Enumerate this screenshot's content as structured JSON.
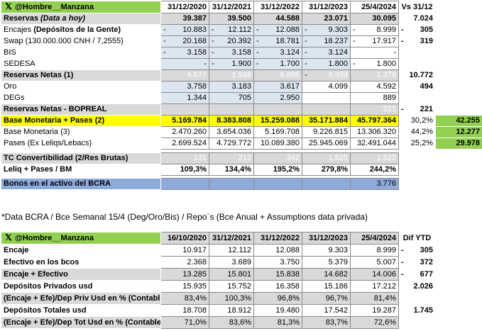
{
  "table1": {
    "brand": "@Hombre__Manzana",
    "headers": [
      "31/12/2020",
      "31/12/2021",
      "31/12/2022",
      "31/12/2023",
      "25/4/2024",
      "Vs 31/12"
    ],
    "rows": [
      {
        "label": "Reservas (Data a hoy)",
        "values": [
          "39.387",
          "39.500",
          "44.588",
          "23.071",
          "30.095"
        ],
        "vs": "7.024"
      },
      {
        "label": "Encajes (Depósitos de la Gente)",
        "values": [
          "10.883",
          "12.112",
          "12.088",
          "9.303",
          "8.999"
        ],
        "vs": "305"
      },
      {
        "label": "Swap (130.000.000 CNH / 7,2555)",
        "values": [
          "20.168",
          "20.392",
          "18.781",
          "18.237",
          "17.917"
        ],
        "vs": "319"
      },
      {
        "label": "BIS",
        "values": [
          "3.158",
          "3.158",
          "3.124",
          "3.124",
          "-"
        ],
        "vs": ""
      },
      {
        "label": "SEDESA",
        "values": [
          "-",
          "1.900",
          "1.700",
          "1.800",
          "1.800"
        ],
        "vs": ""
      },
      {
        "label": "Reservas Netas (1)",
        "values": [
          "4.677",
          "1.938",
          "8.895",
          "9.393",
          "1.379"
        ],
        "vs": "10.772"
      },
      {
        "label": "Oro",
        "values": [
          "3.758",
          "3.183",
          "3.617",
          "4.099",
          "4.592"
        ],
        "vs": "494"
      },
      {
        "label": "DEGs",
        "values": [
          "1.344",
          "705",
          "2.950",
          "",
          "889"
        ],
        "vs": ""
      },
      {
        "label": "Reservas Netas - BOPREAL",
        "values": [
          "",
          "",
          "",
          "",
          "221"
        ],
        "vs": "221"
      },
      {
        "label": "Base Monetaria + Pases (2)",
        "values": [
          "5.169.784",
          "8.383.808",
          "15.259.088",
          "35.171.884",
          "45.797.364"
        ],
        "pct": "30,2%",
        "big": "42.255"
      },
      {
        "label": "Base Monetaria (3)",
        "values": [
          "2.470.260",
          "3.654.036",
          "5.169.708",
          "9.226.815",
          "13.306.320"
        ],
        "pct": "44,2%",
        "big": "12.277"
      },
      {
        "label": "Pases (Ex Leliqs/Lebacs)",
        "values": [
          "2.699.524",
          "4.729.772",
          "10.089.380",
          "25.945.069",
          "32.491.044"
        ],
        "pct": "25,2%",
        "big": "29.978"
      },
      {
        "label": "TC Convertibilidad (2/Res Brutas)",
        "values": [
          "131",
          "212",
          "342",
          "1.525",
          "1.522"
        ]
      },
      {
        "label": "Leliq + Pases / BM",
        "values": [
          "109,3%",
          "134,4%",
          "195,2%",
          "279,8%",
          "244,2%"
        ]
      },
      {
        "label": "Bonos en el activo del BCRA",
        "values": [
          "",
          "",
          "",
          "",
          "3.776"
        ]
      }
    ]
  },
  "footnote": "*Data BCRA / Bce Semanal 15/4 (Deg/Oro/Bis) / Repo´s (Bce Anual + Assumptions data privada)",
  "table2": {
    "brand": "@Hombre__Manzana",
    "headers": [
      "16/10/2020",
      "31/12/2021",
      "31/12/2022",
      "31/12/2023",
      "25/4/2024",
      "Dif YTD"
    ],
    "rows": [
      {
        "label": "Encaje",
        "values": [
          "10.917",
          "12.112",
          "12.088",
          "9.303",
          "8.999"
        ],
        "dif": "305"
      },
      {
        "label": "Efectivo en los bcos",
        "values": [
          "2.368",
          "3.689",
          "3.750",
          "5.379",
          "5.007"
        ],
        "dif": "372"
      },
      {
        "label": "Encaje + Efectivo",
        "values": [
          "13.285",
          "15.801",
          "15.838",
          "14.682",
          "14.006"
        ],
        "dif": "677"
      },
      {
        "label": "Depósitos Privados usd",
        "values": [
          "15.935",
          "15.752",
          "16.358",
          "15.186",
          "17.212"
        ],
        "dif": "2.026"
      },
      {
        "label": "(Encaje + Efe)/Dep Priv Usd en % (Contable)",
        "values": [
          "83,4%",
          "100,3%",
          "96,8%",
          "96,7%",
          "81,4%"
        ],
        "dif": ""
      },
      {
        "label": "Depósitos Totales usd",
        "values": [
          "18.708",
          "18.912",
          "19.480",
          "17.542",
          "19.287"
        ],
        "dif": "1.745"
      },
      {
        "label": "(Encaje + Efe)/Dep Tot Usd en % (Contable)",
        "values": [
          "71,0%",
          "83,6%",
          "81,3%",
          "83,7%",
          "72,6%"
        ],
        "dif": ""
      }
    ]
  },
  "icons": {
    "brand": "x-logo-icon"
  },
  "colors": {
    "green": "#92d050",
    "red": "#ff0000",
    "orange": "#f4b183",
    "yellow": "#ffff00",
    "gray": "#d9d9d9",
    "blue": "#8eaadb",
    "lightblue": "#dce6f1"
  }
}
